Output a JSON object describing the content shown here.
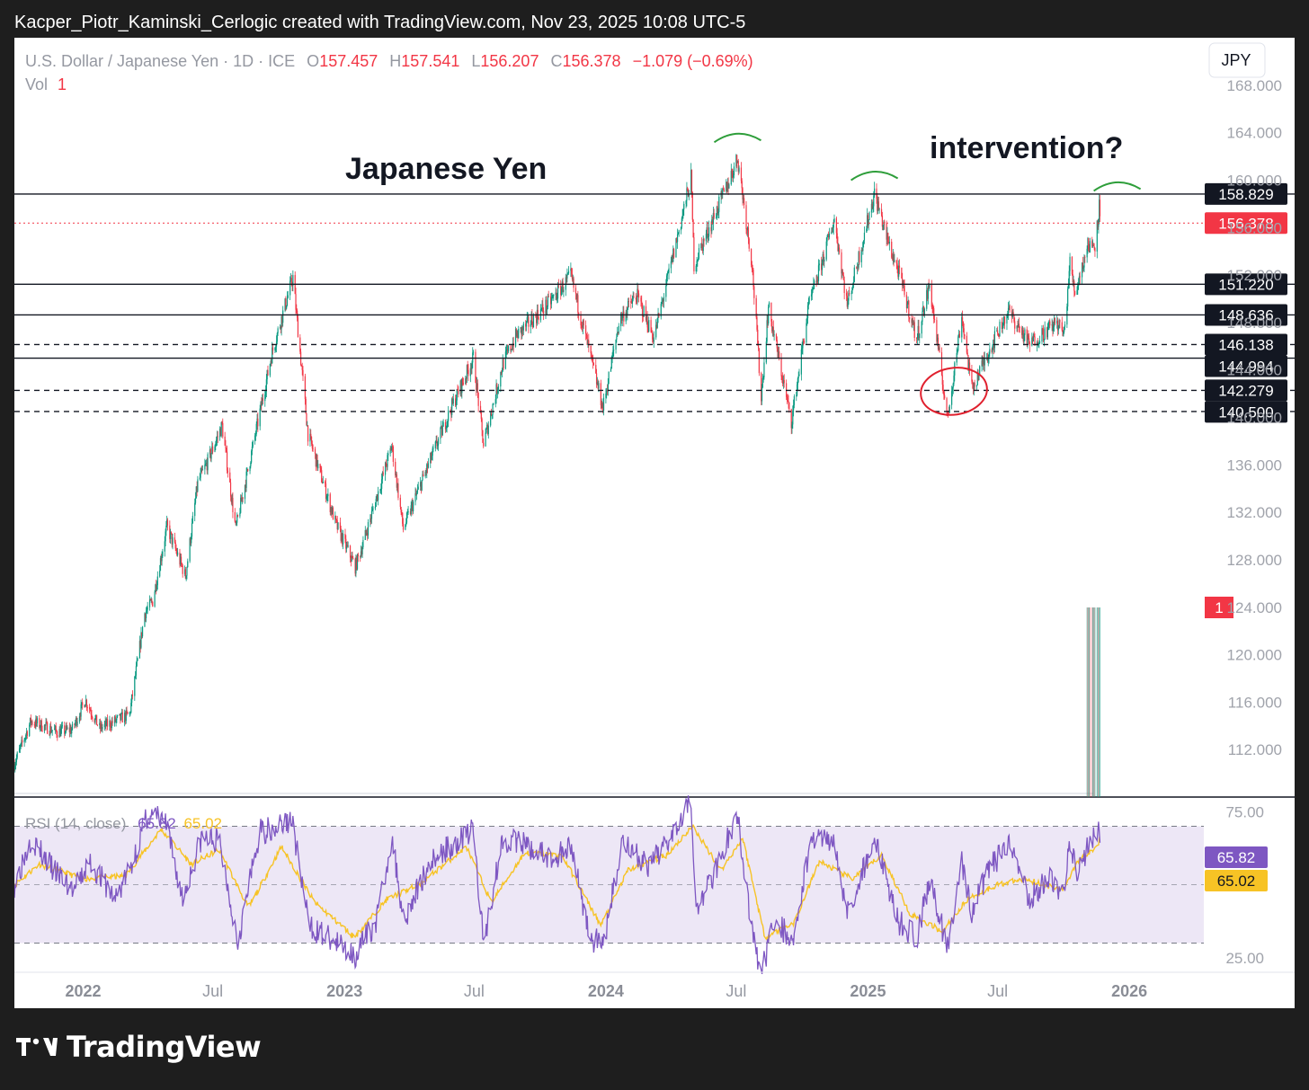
{
  "header": {
    "created_by": "Kacper_Piotr_Kaminski_Cerlogic created with TradingView.com, Nov 23, 2025 10:08 UTC-5"
  },
  "legend": {
    "symbol": "U.S. Dollar / Japanese Yen · 1D · ICE",
    "o_label": "O",
    "o_value": "157.457",
    "h_label": "H",
    "h_value": "157.541",
    "l_label": "L",
    "l_value": "156.207",
    "c_label": "C",
    "c_value": "156.378",
    "change": "−1.079 (−0.69%)",
    "vol_label": "Vol",
    "vol_value": "1"
  },
  "currency_button": "JPY",
  "rsi_legend": {
    "label": "RSI (14, close)",
    "rsi_value": "65.82",
    "ma_value": "65.02"
  },
  "footer": {
    "brand": "TradingView"
  },
  "colors": {
    "up": "#089981",
    "down": "#f23645",
    "rsi": "#7e57c2",
    "rsi_ma": "#f7c325",
    "rsi_band": "#ede7f6",
    "price_label": "#f23645",
    "annotation_arc": "#2e9e3a",
    "annotation_circle": "#e0202e"
  },
  "chart_data": [
    {
      "type": "candlestick",
      "title": "Japanese Yen",
      "annotation": "intervention?",
      "ylim": [
        108,
        172
      ],
      "yticks": [
        "168.000",
        "164.000",
        "160.000",
        "156.000",
        "152.000",
        "148.000",
        "144.000",
        "140.000",
        "136.000",
        "132.000",
        "128.000",
        "124.000",
        "120.000",
        "116.000",
        "112.000"
      ],
      "x_range": [
        "2021-09-27",
        "2026-04-15"
      ],
      "xticks": [
        {
          "date": "2022-01-01",
          "label": "2022",
          "major": true
        },
        {
          "date": "2022-07-01",
          "label": "Jul",
          "major": false
        },
        {
          "date": "2023-01-01",
          "label": "2023",
          "major": true
        },
        {
          "date": "2023-07-01",
          "label": "Jul",
          "major": false
        },
        {
          "date": "2024-01-01",
          "label": "2024",
          "major": true
        },
        {
          "date": "2024-07-01",
          "label": "Jul",
          "major": false
        },
        {
          "date": "2025-01-01",
          "label": "2025",
          "major": true
        },
        {
          "date": "2025-07-01",
          "label": "Jul",
          "major": false
        },
        {
          "date": "2026-01-01",
          "label": "2026",
          "major": true
        }
      ],
      "price_path": [
        [
          "2021-09-27",
          110.8
        ],
        [
          "2021-10-20",
          114.4
        ],
        [
          "2021-11-26",
          113.5
        ],
        [
          "2021-12-17",
          113.7
        ],
        [
          "2022-01-04",
          116.2
        ],
        [
          "2022-01-24",
          113.8
        ],
        [
          "2022-02-22",
          114.6
        ],
        [
          "2022-03-07",
          115.0
        ],
        [
          "2022-03-28",
          123.5
        ],
        [
          "2022-04-08",
          124.5
        ],
        [
          "2022-04-28",
          130.8
        ],
        [
          "2022-05-24",
          126.6
        ],
        [
          "2022-06-10",
          134.5
        ],
        [
          "2022-06-22",
          136.0
        ],
        [
          "2022-07-14",
          139.3
        ],
        [
          "2022-08-02",
          130.6
        ],
        [
          "2022-08-31",
          139.0
        ],
        [
          "2022-09-22",
          145.5
        ],
        [
          "2022-10-21",
          151.8
        ],
        [
          "2022-11-11",
          138.6
        ],
        [
          "2022-12-20",
          131.0
        ],
        [
          "2023-01-16",
          127.4
        ],
        [
          "2023-01-25",
          129.0
        ],
        [
          "2023-03-08",
          137.6
        ],
        [
          "2023-03-24",
          130.6
        ],
        [
          "2023-04-15",
          134.0
        ],
        [
          "2023-05-30",
          140.8
        ],
        [
          "2023-06-30",
          145.0
        ],
        [
          "2023-07-14",
          137.7
        ],
        [
          "2023-08-10",
          144.5
        ],
        [
          "2023-08-28",
          146.8
        ],
        [
          "2023-10-16",
          149.8
        ],
        [
          "2023-11-13",
          151.9
        ],
        [
          "2023-12-28",
          140.8
        ],
        [
          "2024-01-20",
          148.2
        ],
        [
          "2024-02-13",
          150.3
        ],
        [
          "2024-03-08",
          146.7
        ],
        [
          "2024-04-29",
          160.2
        ],
        [
          "2024-05-03",
          152.9
        ],
        [
          "2024-06-20",
          159.8
        ],
        [
          "2024-07-03",
          161.9
        ],
        [
          "2024-07-23",
          153.0
        ],
        [
          "2024-08-05",
          141.7
        ],
        [
          "2024-08-15",
          149.3
        ],
        [
          "2024-09-16",
          139.6
        ],
        [
          "2024-10-10",
          149.3
        ],
        [
          "2024-11-15",
          156.7
        ],
        [
          "2024-12-03",
          149.5
        ],
        [
          "2025-01-10",
          158.9
        ],
        [
          "2025-01-28",
          155.0
        ],
        [
          "2025-02-14",
          152.0
        ],
        [
          "2025-03-10",
          146.6
        ],
        [
          "2025-03-28",
          151.2
        ],
        [
          "2025-04-22",
          139.9
        ],
        [
          "2025-05-12",
          148.6
        ],
        [
          "2025-05-26",
          142.4
        ],
        [
          "2025-06-18",
          145.5
        ],
        [
          "2025-07-16",
          149.0
        ],
        [
          "2025-08-14",
          146.2
        ],
        [
          "2025-09-22",
          148.0
        ],
        [
          "2025-10-02",
          147.0
        ],
        [
          "2025-10-10",
          153.0
        ],
        [
          "2025-10-17",
          150.5
        ],
        [
          "2025-11-04",
          154.5
        ],
        [
          "2025-11-14",
          154.6
        ],
        [
          "2025-11-20",
          157.8
        ],
        [
          "2025-11-21",
          156.378
        ]
      ],
      "last_close": 156.378,
      "horizontal_lines": [
        {
          "value": 158.829,
          "label": "158.829",
          "style": "solid"
        },
        {
          "value": 151.22,
          "label": "151.220",
          "style": "solid"
        },
        {
          "value": 148.636,
          "label": "148.636",
          "style": "solid"
        },
        {
          "value": 146.138,
          "label": "146.138",
          "style": "dashed"
        },
        {
          "value": 144.994,
          "label": "144.994",
          "style": "solid"
        },
        {
          "value": 142.279,
          "label": "142.279",
          "style": "dashed"
        },
        {
          "value": 140.5,
          "label": "140.500",
          "style": "dashed"
        }
      ],
      "annotation_arcs": [
        {
          "date": "2024-07-03",
          "value": 163.8
        },
        {
          "date": "2025-01-10",
          "value": 160.6
        },
        {
          "date": "2025-12-15",
          "value": 159.7
        }
      ],
      "annotation_circle": {
        "date": "2025-05-01",
        "value": 142.2
      },
      "volume": {
        "start": "2025-11-01",
        "end": "2025-11-21",
        "value": 1,
        "label": "1"
      }
    },
    {
      "type": "line",
      "name": "RSI (14, close)",
      "ylim": [
        20,
        80
      ],
      "yticks": [
        "75.00",
        "25.00"
      ],
      "band": {
        "upper": 70,
        "middle": 50,
        "lower": 30
      },
      "series": [
        {
          "name": "RSI",
          "values_path": [
            [
              "2021-09-27",
              50
            ],
            [
              "2021-10-20",
              66
            ],
            [
              "2021-11-20",
              55
            ],
            [
              "2021-12-20",
              48
            ],
            [
              "2022-01-10",
              58
            ],
            [
              "2022-02-15",
              45
            ],
            [
              "2022-03-10",
              57
            ],
            [
              "2022-04-01",
              74
            ],
            [
              "2022-04-25",
              72
            ],
            [
              "2022-05-20",
              45
            ],
            [
              "2022-06-15",
              66
            ],
            [
              "2022-07-10",
              65
            ],
            [
              "2022-08-05",
              31
            ],
            [
              "2022-09-05",
              68
            ],
            [
              "2022-10-20",
              72
            ],
            [
              "2022-11-12",
              36
            ],
            [
              "2022-12-20",
              30
            ],
            [
              "2023-01-16",
              26
            ],
            [
              "2023-02-15",
              38
            ],
            [
              "2023-03-08",
              66
            ],
            [
              "2023-03-25",
              38
            ],
            [
              "2023-05-01",
              58
            ],
            [
              "2023-06-30",
              69
            ],
            [
              "2023-07-14",
              30
            ],
            [
              "2023-08-10",
              66
            ],
            [
              "2023-09-15",
              63
            ],
            [
              "2023-10-20",
              58
            ],
            [
              "2023-11-13",
              64
            ],
            [
              "2023-12-10",
              32
            ],
            [
              "2023-12-28",
              29
            ],
            [
              "2024-01-25",
              66
            ],
            [
              "2024-03-01",
              55
            ],
            [
              "2024-03-28",
              66
            ],
            [
              "2024-04-29",
              80
            ],
            [
              "2024-05-06",
              40
            ],
            [
              "2024-06-20",
              66
            ],
            [
              "2024-07-03",
              73
            ],
            [
              "2024-07-22",
              36
            ],
            [
              "2024-08-05",
              19
            ],
            [
              "2024-08-25",
              40
            ],
            [
              "2024-09-16",
              29
            ],
            [
              "2024-10-15",
              66
            ],
            [
              "2024-11-15",
              66
            ],
            [
              "2024-12-03",
              40
            ],
            [
              "2025-01-10",
              66
            ],
            [
              "2025-02-14",
              37
            ],
            [
              "2025-03-10",
              32
            ],
            [
              "2025-03-28",
              52
            ],
            [
              "2025-04-22",
              28
            ],
            [
              "2025-05-12",
              58
            ],
            [
              "2025-05-26",
              40
            ],
            [
              "2025-06-18",
              55
            ],
            [
              "2025-07-16",
              63
            ],
            [
              "2025-08-14",
              46
            ],
            [
              "2025-09-15",
              52
            ],
            [
              "2025-10-02",
              46
            ],
            [
              "2025-10-10",
              66
            ],
            [
              "2025-10-20",
              52
            ],
            [
              "2025-11-04",
              64
            ],
            [
              "2025-11-14",
              66
            ],
            [
              "2025-11-20",
              72
            ],
            [
              "2025-11-21",
              65.82
            ]
          ]
        },
        {
          "name": "RSI-based MA",
          "values_path": [
            [
              "2021-09-27",
              50
            ],
            [
              "2021-11-01",
              57
            ],
            [
              "2022-01-01",
              52
            ],
            [
              "2022-03-01",
              53
            ],
            [
              "2022-04-20",
              69
            ],
            [
              "2022-06-01",
              57
            ],
            [
              "2022-07-10",
              62
            ],
            [
              "2022-08-20",
              42
            ],
            [
              "2022-10-05",
              63
            ],
            [
              "2022-11-20",
              44
            ],
            [
              "2023-01-15",
              32
            ],
            [
              "2023-03-01",
              45
            ],
            [
              "2023-04-15",
              50
            ],
            [
              "2023-06-20",
              63
            ],
            [
              "2023-07-25",
              44
            ],
            [
              "2023-09-10",
              61
            ],
            [
              "2023-11-01",
              60
            ],
            [
              "2023-12-25",
              36
            ],
            [
              "2024-02-01",
              55
            ],
            [
              "2024-03-25",
              60
            ],
            [
              "2024-05-01",
              70
            ],
            [
              "2024-06-10",
              55
            ],
            [
              "2024-07-10",
              66
            ],
            [
              "2024-08-10",
              32
            ],
            [
              "2024-09-20",
              37
            ],
            [
              "2024-10-25",
              58
            ],
            [
              "2024-12-10",
              52
            ],
            [
              "2025-01-20",
              60
            ],
            [
              "2025-03-01",
              40
            ],
            [
              "2025-04-15",
              34
            ],
            [
              "2025-05-20",
              45
            ],
            [
              "2025-06-30",
              50
            ],
            [
              "2025-08-10",
              52
            ],
            [
              "2025-09-30",
              48
            ],
            [
              "2025-10-20",
              58
            ],
            [
              "2025-11-10",
              62
            ],
            [
              "2025-11-21",
              65.02
            ]
          ]
        }
      ]
    }
  ]
}
